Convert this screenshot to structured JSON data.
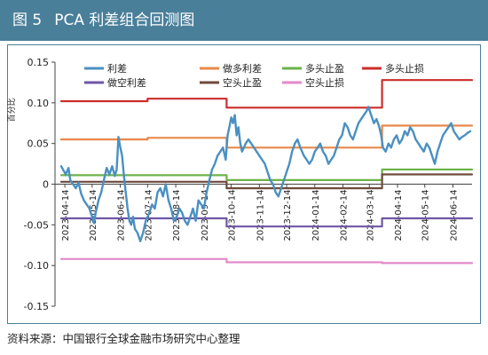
{
  "header": {
    "figure_label": "图 5",
    "title": "PCA 利差组合回测图"
  },
  "source": "资料来源：中国银行全球金融市场研究中心整理",
  "chart_data": {
    "type": "line",
    "ylabel": "百分比",
    "ylim": [
      -0.15,
      0.15
    ],
    "yticks": [
      -0.15,
      -0.1,
      -0.05,
      0,
      0.05,
      0.1,
      0.15
    ],
    "ytick_labels": [
      "-0.15",
      "-0.10",
      "-0.05",
      "0",
      "0.05",
      "0.10",
      "0.15"
    ],
    "xlim": [
      "2023-04-10",
      "2024-07-05"
    ],
    "xticks": [
      "2023-04-14",
      "2023-05-14",
      "2023-06-14",
      "2023-07-14",
      "2023-08-14",
      "2023-09-14",
      "2023-10-14",
      "2023-11-14",
      "2023-12-14",
      "2024-01-14",
      "2024-02-14",
      "2024-03-14",
      "2024-04-14",
      "2024-05-14",
      "2024-06-14"
    ],
    "grid": false,
    "legend_position": "top",
    "series": [
      {
        "name": "利差",
        "color": "#4a90c2",
        "width": 2.4,
        "points": [
          [
            "2023-04-10",
            0.022
          ],
          [
            "2023-04-12",
            0.018
          ],
          [
            "2023-04-15",
            0.012
          ],
          [
            "2023-04-18",
            0.02
          ],
          [
            "2023-04-20",
            0.005
          ],
          [
            "2023-04-23",
            0.0
          ],
          [
            "2023-04-26",
            -0.005
          ],
          [
            "2023-04-29",
            0.002
          ],
          [
            "2023-05-02",
            -0.012
          ],
          [
            "2023-05-05",
            -0.02
          ],
          [
            "2023-05-08",
            -0.025
          ],
          [
            "2023-05-11",
            -0.03
          ],
          [
            "2023-05-14",
            -0.04
          ],
          [
            "2023-05-16",
            -0.048
          ],
          [
            "2023-05-18",
            -0.035
          ],
          [
            "2023-05-21",
            -0.02
          ],
          [
            "2023-05-24",
            -0.01
          ],
          [
            "2023-05-27",
            0.005
          ],
          [
            "2023-05-30",
            0.02
          ],
          [
            "2023-06-02",
            0.012
          ],
          [
            "2023-06-05",
            0.022
          ],
          [
            "2023-06-08",
            0.01
          ],
          [
            "2023-06-10",
            0.018
          ],
          [
            "2023-06-12",
            0.058
          ],
          [
            "2023-06-14",
            0.045
          ],
          [
            "2023-06-16",
            0.035
          ],
          [
            "2023-06-18",
            0.01
          ],
          [
            "2023-06-20",
            -0.01
          ],
          [
            "2023-06-22",
            -0.03
          ],
          [
            "2023-06-24",
            -0.045
          ],
          [
            "2023-06-26",
            -0.05
          ],
          [
            "2023-06-28",
            -0.04
          ],
          [
            "2023-06-30",
            -0.055
          ],
          [
            "2023-07-03",
            -0.06
          ],
          [
            "2023-07-06",
            -0.07
          ],
          [
            "2023-07-09",
            -0.06
          ],
          [
            "2023-07-12",
            -0.045
          ],
          [
            "2023-07-14",
            -0.04
          ],
          [
            "2023-07-16",
            -0.035
          ],
          [
            "2023-07-19",
            -0.025
          ],
          [
            "2023-07-22",
            -0.03
          ],
          [
            "2023-07-25",
            -0.01
          ],
          [
            "2023-07-28",
            -0.005
          ],
          [
            "2023-07-31",
            -0.015
          ],
          [
            "2023-08-03",
            0.0
          ],
          [
            "2023-08-06",
            -0.02
          ],
          [
            "2023-08-09",
            -0.03
          ],
          [
            "2023-08-12",
            -0.045
          ],
          [
            "2023-08-15",
            -0.04
          ],
          [
            "2023-08-18",
            -0.03
          ],
          [
            "2023-08-21",
            -0.035
          ],
          [
            "2023-08-24",
            -0.045
          ],
          [
            "2023-08-27",
            -0.05
          ],
          [
            "2023-08-30",
            -0.04
          ],
          [
            "2023-09-02",
            -0.03
          ],
          [
            "2023-09-05",
            -0.045
          ],
          [
            "2023-09-08",
            -0.02
          ],
          [
            "2023-09-11",
            -0.025
          ],
          [
            "2023-09-14",
            -0.03
          ],
          [
            "2023-09-17",
            -0.01
          ],
          [
            "2023-09-20",
            0.005
          ],
          [
            "2023-09-23",
            0.018
          ],
          [
            "2023-09-26",
            0.025
          ],
          [
            "2023-09-29",
            0.035
          ],
          [
            "2023-10-02",
            0.04
          ],
          [
            "2023-10-05",
            0.045
          ],
          [
            "2023-10-08",
            0.03
          ],
          [
            "2023-10-10",
            0.06
          ],
          [
            "2023-10-12",
            0.07
          ],
          [
            "2023-10-14",
            0.082
          ],
          [
            "2023-10-16",
            0.075
          ],
          [
            "2023-10-18",
            0.085
          ],
          [
            "2023-10-20",
            0.06
          ],
          [
            "2023-10-22",
            0.07
          ],
          [
            "2023-10-24",
            0.05
          ],
          [
            "2023-10-26",
            0.04
          ],
          [
            "2023-10-28",
            0.045
          ],
          [
            "2023-10-30",
            0.05
          ],
          [
            "2023-11-02",
            0.055
          ],
          [
            "2023-11-05",
            0.05
          ],
          [
            "2023-11-08",
            0.045
          ],
          [
            "2023-11-11",
            0.04
          ],
          [
            "2023-11-14",
            0.035
          ],
          [
            "2023-11-17",
            0.03
          ],
          [
            "2023-11-20",
            0.025
          ],
          [
            "2023-11-23",
            0.015
          ],
          [
            "2023-11-26",
            0.005
          ],
          [
            "2023-11-29",
            0.0
          ],
          [
            "2023-12-02",
            -0.01
          ],
          [
            "2023-12-05",
            -0.015
          ],
          [
            "2023-12-08",
            -0.005
          ],
          [
            "2023-12-11",
            0.005
          ],
          [
            "2023-12-14",
            0.015
          ],
          [
            "2023-12-17",
            0.025
          ],
          [
            "2023-12-20",
            0.04
          ],
          [
            "2023-12-23",
            0.05
          ],
          [
            "2023-12-26",
            0.055
          ],
          [
            "2023-12-29",
            0.045
          ],
          [
            "2024-01-02",
            0.035
          ],
          [
            "2024-01-05",
            0.03
          ],
          [
            "2024-01-08",
            0.025
          ],
          [
            "2024-01-11",
            0.03
          ],
          [
            "2024-01-14",
            0.04
          ],
          [
            "2024-01-17",
            0.045
          ],
          [
            "2024-01-20",
            0.05
          ],
          [
            "2024-01-23",
            0.04
          ],
          [
            "2024-01-26",
            0.035
          ],
          [
            "2024-01-29",
            0.025
          ],
          [
            "2024-02-01",
            0.03
          ],
          [
            "2024-02-04",
            0.035
          ],
          [
            "2024-02-07",
            0.045
          ],
          [
            "2024-02-10",
            0.055
          ],
          [
            "2024-02-13",
            0.06
          ],
          [
            "2024-02-16",
            0.075
          ],
          [
            "2024-02-19",
            0.07
          ],
          [
            "2024-02-22",
            0.06
          ],
          [
            "2024-02-25",
            0.055
          ],
          [
            "2024-02-28",
            0.065
          ],
          [
            "2024-03-02",
            0.075
          ],
          [
            "2024-03-05",
            0.08
          ],
          [
            "2024-03-08",
            0.085
          ],
          [
            "2024-03-11",
            0.09
          ],
          [
            "2024-03-13",
            0.095
          ],
          [
            "2024-03-16",
            0.085
          ],
          [
            "2024-03-19",
            0.075
          ],
          [
            "2024-03-22",
            0.08
          ],
          [
            "2024-03-25",
            0.07
          ],
          [
            "2024-03-27",
            0.06
          ],
          [
            "2024-03-29",
            0.045
          ],
          [
            "2024-04-01",
            0.04
          ],
          [
            "2024-04-04",
            0.05
          ],
          [
            "2024-04-07",
            0.045
          ],
          [
            "2024-04-10",
            0.055
          ],
          [
            "2024-04-13",
            0.06
          ],
          [
            "2024-04-16",
            0.05
          ],
          [
            "2024-04-19",
            0.055
          ],
          [
            "2024-04-22",
            0.065
          ],
          [
            "2024-04-25",
            0.06
          ],
          [
            "2024-04-28",
            0.07
          ],
          [
            "2024-05-01",
            0.065
          ],
          [
            "2024-05-04",
            0.055
          ],
          [
            "2024-05-07",
            0.05
          ],
          [
            "2024-05-10",
            0.045
          ],
          [
            "2024-05-13",
            0.04
          ],
          [
            "2024-05-16",
            0.05
          ],
          [
            "2024-05-19",
            0.045
          ],
          [
            "2024-05-22",
            0.035
          ],
          [
            "2024-05-25",
            0.025
          ],
          [
            "2024-05-28",
            0.04
          ],
          [
            "2024-05-31",
            0.05
          ],
          [
            "2024-06-03",
            0.06
          ],
          [
            "2024-06-06",
            0.065
          ],
          [
            "2024-06-09",
            0.07
          ],
          [
            "2024-06-12",
            0.075
          ],
          [
            "2024-06-15",
            0.065
          ],
          [
            "2024-06-18",
            0.06
          ],
          [
            "2024-06-21",
            0.055
          ],
          [
            "2024-06-24",
            0.058
          ],
          [
            "2024-06-27",
            0.06
          ],
          [
            "2024-06-30",
            0.063
          ],
          [
            "2024-07-03",
            0.065
          ]
        ]
      },
      {
        "name": "做多利差",
        "color": "#e8884a",
        "width": 2.2,
        "points": [
          [
            "2023-04-10",
            0.055
          ],
          [
            "2023-07-14",
            0.055
          ],
          [
            "2023-07-14",
            0.057
          ],
          [
            "2023-10-09",
            0.057
          ],
          [
            "2023-10-09",
            0.045
          ],
          [
            "2024-03-28",
            0.045
          ],
          [
            "2024-03-28",
            0.072
          ],
          [
            "2024-07-05",
            0.072
          ]
        ]
      },
      {
        "name": "多头止盈",
        "color": "#6cb34a",
        "width": 2.2,
        "points": [
          [
            "2023-04-10",
            0.011
          ],
          [
            "2023-10-09",
            0.011
          ],
          [
            "2023-10-09",
            0.005
          ],
          [
            "2024-03-28",
            0.005
          ],
          [
            "2024-03-28",
            0.018
          ],
          [
            "2024-07-05",
            0.018
          ]
        ]
      },
      {
        "name": "多头止损",
        "color": "#cc2d2d",
        "width": 2.2,
        "points": [
          [
            "2023-04-10",
            0.102
          ],
          [
            "2023-07-14",
            0.102
          ],
          [
            "2023-07-14",
            0.105
          ],
          [
            "2023-10-09",
            0.105
          ],
          [
            "2023-10-09",
            0.094
          ],
          [
            "2024-03-28",
            0.094
          ],
          [
            "2024-03-28",
            0.128
          ],
          [
            "2024-07-05",
            0.128
          ]
        ]
      },
      {
        "name": "做空利差",
        "color": "#6d57a6",
        "width": 2.2,
        "points": [
          [
            "2023-04-10",
            -0.042
          ],
          [
            "2023-10-09",
            -0.042
          ],
          [
            "2023-10-09",
            -0.052
          ],
          [
            "2024-03-28",
            -0.052
          ],
          [
            "2024-03-28",
            -0.042
          ],
          [
            "2024-07-05",
            -0.042
          ]
        ]
      },
      {
        "name": "空头止盈",
        "color": "#6e4a3c",
        "width": 2.2,
        "points": [
          [
            "2023-04-10",
            0.003
          ],
          [
            "2023-10-09",
            0.003
          ],
          [
            "2023-10-09",
            -0.005
          ],
          [
            "2024-03-28",
            -0.005
          ],
          [
            "2024-03-28",
            0.012
          ],
          [
            "2024-07-05",
            0.012
          ]
        ]
      },
      {
        "name": "空头止损",
        "color": "#e28ac8",
        "width": 2.2,
        "points": [
          [
            "2023-04-10",
            -0.092
          ],
          [
            "2023-10-09",
            -0.092
          ],
          [
            "2023-10-09",
            -0.096
          ],
          [
            "2024-03-28",
            -0.096
          ],
          [
            "2024-03-28",
            -0.097
          ],
          [
            "2024-07-05",
            -0.097
          ]
        ]
      }
    ]
  }
}
